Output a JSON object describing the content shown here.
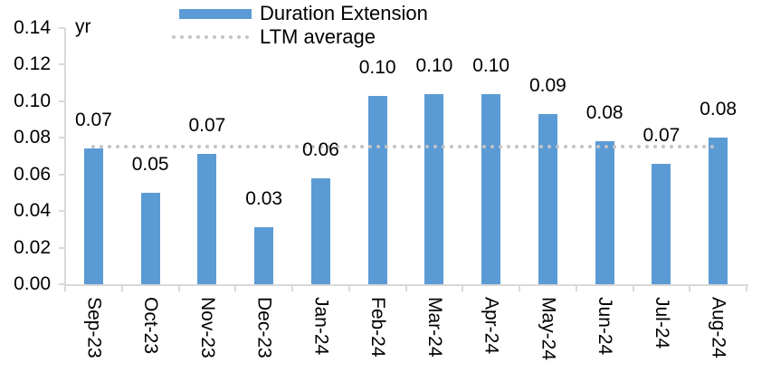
{
  "unit_label": "yr",
  "colors": {
    "bar": "#5B9BD5",
    "ltm_line": "#C4C4C4",
    "axis": "#D9D9D9",
    "text": "#000000",
    "background": "#FFFFFF"
  },
  "chart_data": {
    "type": "bar",
    "title": "",
    "xlabel": "",
    "ylabel": "yr",
    "unit_label": "yr",
    "grid": false,
    "legend_position": "top",
    "categories": [
      "Sep-23",
      "Oct-23",
      "Nov-23",
      "Dec-23",
      "Jan-24",
      "Feb-24",
      "Mar-24",
      "Apr-24",
      "May-24",
      "Jun-24",
      "Jul-24",
      "Aug-24"
    ],
    "series": [
      {
        "name": "Duration Extension",
        "type": "bar",
        "color": "#5B9BD5",
        "values": [
          0.074,
          0.05,
          0.071,
          0.031,
          0.058,
          0.103,
          0.104,
          0.104,
          0.093,
          0.078,
          0.066,
          0.08
        ],
        "data_labels": [
          "0.07",
          "0.05",
          "0.07",
          "0.03",
          "0.06",
          "0.10",
          "0.10",
          "0.10",
          "0.09",
          "0.08",
          "0.07",
          "0.08"
        ]
      },
      {
        "name": "LTM average",
        "type": "line",
        "line_style": "dotted",
        "color": "#C4C4C4",
        "value": 0.075
      }
    ],
    "y_axis": {
      "min": 0,
      "max": 0.14,
      "tick_step": 0.02,
      "tick_labels": [
        "0.00",
        "0.02",
        "0.04",
        "0.06",
        "0.08",
        "0.10",
        "0.12",
        "0.14"
      ]
    },
    "ylim": [
      0,
      0.14
    ]
  }
}
